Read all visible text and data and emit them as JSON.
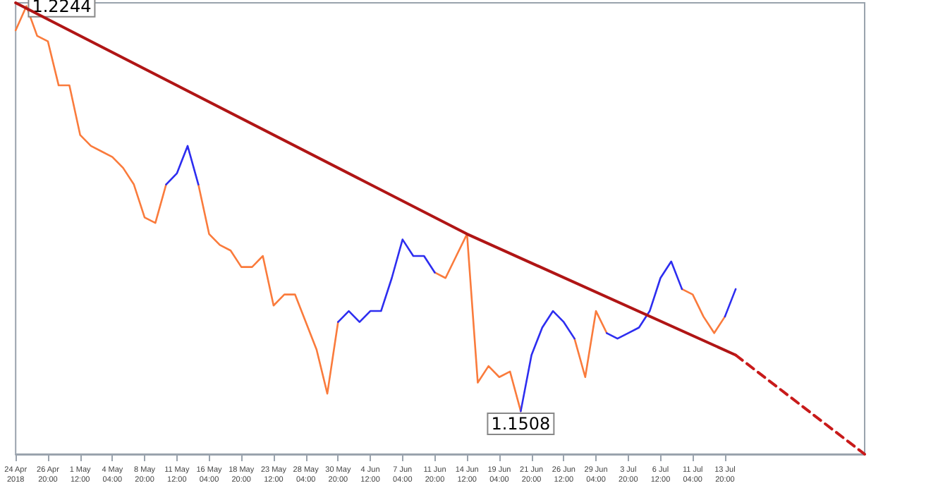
{
  "chart_data": {
    "type": "line",
    "marker": "none",
    "tick_labels": "x",
    "ylim": [
      1.143,
      1.225
    ],
    "categories": [
      "24 Apr 2018",
      null,
      null,
      "26 Apr 20:00",
      null,
      null,
      "1 May 12:00",
      null,
      null,
      "4 May 04:00",
      null,
      null,
      "8 May 20:00",
      null,
      null,
      "11 May 12:00",
      null,
      null,
      "16 May 04:00",
      null,
      null,
      "18 May 20:00",
      null,
      null,
      "23 May 12:00",
      null,
      null,
      "28 May 04:00",
      null,
      null,
      "30 May 20:00",
      null,
      null,
      "4 Jun 12:00",
      null,
      null,
      "7 Jun 04:00",
      null,
      null,
      "11 Jun 20:00",
      null,
      null,
      "14 Jun 12:00",
      null,
      null,
      "19 Jun 04:00",
      null,
      null,
      "21 Jun 20:00",
      null,
      null,
      "26 Jun 12:00",
      null,
      null,
      "29 Jun 04:00",
      null,
      null,
      "3 Jul 20:00",
      null,
      null,
      "6 Jul 12:00",
      null,
      null,
      "11 Jul 04:00",
      null,
      null,
      "13 Jul 20:00",
      null,
      null,
      null,
      null,
      null,
      null,
      null,
      null,
      null,
      null,
      null,
      null,
      null
    ],
    "series": [
      {
        "color": "#fa7b3c",
        "line_style": "solid",
        "values": [
          1.22,
          1.2244,
          1.219,
          1.218,
          1.21,
          1.21,
          1.201,
          1.199,
          1.198,
          1.197,
          1.195,
          1.192,
          1.186,
          1.185,
          1.192,
          null,
          null,
          1.192,
          1.183,
          1.181,
          1.18,
          1.177,
          1.177,
          1.179,
          1.17,
          1.172,
          1.172,
          1.167,
          1.162,
          1.154,
          1.167,
          null,
          null,
          null,
          null,
          null,
          null,
          null,
          null,
          1.176,
          1.175,
          1.179,
          1.183,
          1.156,
          1.159,
          1.157,
          1.158,
          1.1508,
          null,
          null,
          null,
          null,
          1.164,
          1.157,
          1.169,
          1.165,
          null,
          null,
          null,
          null,
          null,
          null,
          1.173,
          1.172,
          1.168,
          1.165,
          1.168,
          null,
          null,
          null,
          null,
          null,
          null,
          null,
          null,
          null,
          null,
          null,
          null,
          null
        ],
        "value_labels": [
          null,
          "1.2244",
          null,
          null,
          null,
          null,
          null,
          null,
          null,
          null,
          null,
          null,
          null,
          null,
          null,
          null,
          null,
          null,
          null,
          null,
          null,
          null,
          null,
          null,
          null,
          null,
          null,
          null,
          null,
          null,
          null,
          null,
          null,
          null,
          null,
          null,
          null,
          null,
          null,
          null,
          null,
          null,
          null,
          null,
          null,
          null,
          null,
          "1.1508",
          null,
          null,
          null,
          null,
          null,
          null,
          null,
          null,
          null,
          null,
          null,
          null,
          null,
          null,
          null,
          null,
          null,
          null,
          null,
          null,
          null,
          null,
          null,
          null,
          null,
          null,
          null,
          null,
          null,
          null,
          null,
          null
        ]
      },
      {
        "color": "#2d2df0",
        "line_style": "solid",
        "values": [
          null,
          null,
          null,
          null,
          null,
          null,
          null,
          null,
          null,
          null,
          null,
          null,
          null,
          null,
          1.192,
          1.194,
          1.199,
          1.192,
          null,
          null,
          null,
          null,
          null,
          null,
          null,
          null,
          null,
          null,
          null,
          null,
          1.167,
          1.169,
          1.167,
          1.169,
          1.169,
          1.175,
          1.182,
          1.179,
          1.179,
          1.176,
          null,
          null,
          null,
          null,
          null,
          null,
          null,
          1.1508,
          1.161,
          1.166,
          1.169,
          1.167,
          1.164,
          null,
          null,
          1.165,
          1.164,
          1.165,
          1.166,
          1.169,
          1.175,
          1.178,
          1.173,
          null,
          null,
          null,
          1.168,
          1.173,
          null,
          null,
          null,
          null,
          null,
          null,
          null,
          null,
          null,
          null,
          null,
          null
        ]
      },
      {
        "type": "line",
        "color": "#b01515",
        "line_style": "solid",
        "values": [
          1.225,
          null,
          null,
          null,
          null,
          null,
          null,
          null,
          null,
          null,
          null,
          null,
          null,
          null,
          null,
          null,
          null,
          null,
          null,
          null,
          null,
          null,
          null,
          null,
          null,
          null,
          null,
          null,
          null,
          null,
          null,
          null,
          null,
          null,
          null,
          null,
          null,
          null,
          null,
          null,
          null,
          null,
          1.183,
          null,
          null,
          null,
          null,
          null,
          null,
          null,
          null,
          null,
          null,
          null,
          null,
          null,
          null,
          null,
          null,
          null,
          null,
          null,
          null,
          null,
          null,
          null,
          null,
          1.161,
          null,
          null,
          null,
          null,
          null,
          null,
          null,
          null,
          null,
          null,
          null,
          null
        ]
      },
      {
        "type": "line",
        "color": "#c81a1a",
        "line_style": "dashed",
        "values": [
          null,
          null,
          null,
          null,
          null,
          null,
          null,
          null,
          null,
          null,
          null,
          null,
          null,
          null,
          null,
          null,
          null,
          null,
          null,
          null,
          null,
          null,
          null,
          null,
          null,
          null,
          null,
          null,
          null,
          null,
          null,
          null,
          null,
          null,
          null,
          null,
          null,
          null,
          null,
          null,
          null,
          null,
          null,
          null,
          null,
          null,
          null,
          null,
          null,
          null,
          null,
          null,
          null,
          null,
          null,
          null,
          null,
          null,
          null,
          null,
          null,
          null,
          null,
          null,
          null,
          null,
          null,
          1.161,
          null,
          null,
          null,
          null,
          null,
          null,
          null,
          null,
          null,
          null,
          null,
          1.143
        ]
      }
    ]
  }
}
